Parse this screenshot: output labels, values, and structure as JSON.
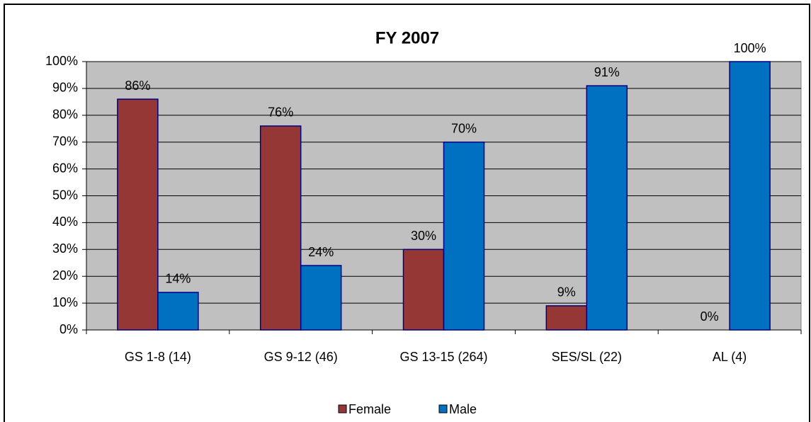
{
  "chart_data": {
    "type": "bar",
    "title": "FY 2007",
    "categories": [
      "GS 1-8 (14)",
      "GS 9-12 (46)",
      "GS 13-15 (264)",
      "SES/SL (22)",
      "AL (4)"
    ],
    "series": [
      {
        "name": "Female",
        "color": "#953735",
        "values": [
          86,
          76,
          30,
          9,
          0
        ],
        "value_labels": [
          "86%",
          "76%",
          "30%",
          "9%",
          "0%"
        ]
      },
      {
        "name": "Male",
        "color": "#0070c0",
        "values": [
          14,
          24,
          70,
          91,
          100
        ],
        "value_labels": [
          "14%",
          "24%",
          "70%",
          "91%",
          "100%"
        ]
      }
    ],
    "ylim": [
      0,
      100
    ],
    "yticks": [
      {
        "value": 0,
        "label": "0%"
      },
      {
        "value": 10,
        "label": "10%"
      },
      {
        "value": 20,
        "label": "20%"
      },
      {
        "value": 30,
        "label": "30%"
      },
      {
        "value": 40,
        "label": "40%"
      },
      {
        "value": 50,
        "label": "50%"
      },
      {
        "value": 60,
        "label": "60%"
      },
      {
        "value": 70,
        "label": "70%"
      },
      {
        "value": 80,
        "label": "80%"
      },
      {
        "value": 90,
        "label": "90%"
      },
      {
        "value": 100,
        "label": "100%"
      }
    ],
    "grid": true,
    "legend": "bottom",
    "plot_background": "#c0c0c0"
  }
}
